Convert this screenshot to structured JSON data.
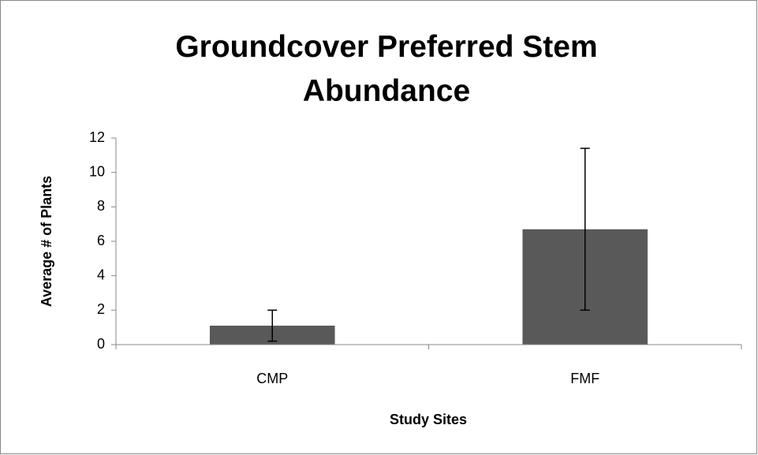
{
  "chart_data": {
    "type": "bar",
    "title": "Groundcover Preferred Stem Abundance",
    "x_label": "Study Sites",
    "y_label": "Average # of Plants",
    "categories": [
      "CMP",
      "FMF"
    ],
    "values": [
      1.1,
      6.7
    ],
    "errors": [
      0.9,
      4.7
    ],
    "color": "#595959",
    "ylim": [
      0,
      12
    ],
    "yticks": [
      0,
      2,
      4,
      6,
      8,
      10,
      12
    ],
    "grid": false
  }
}
